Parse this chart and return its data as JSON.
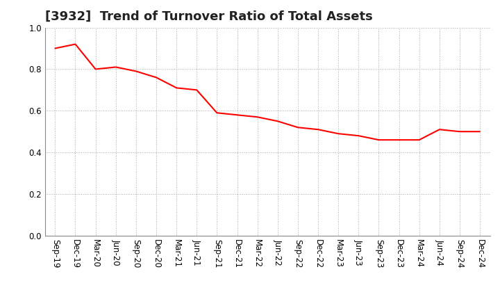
{
  "title": "[3932]  Trend of Turnover Ratio of Total Assets",
  "x_labels": [
    "Sep-19",
    "Dec-19",
    "Mar-20",
    "Jun-20",
    "Sep-20",
    "Dec-20",
    "Mar-21",
    "Jun-21",
    "Sep-21",
    "Dec-21",
    "Mar-22",
    "Jun-22",
    "Sep-22",
    "Dec-22",
    "Mar-23",
    "Jun-23",
    "Sep-23",
    "Dec-23",
    "Mar-24",
    "Jun-24",
    "Sep-24",
    "Dec-24"
  ],
  "values": [
    0.9,
    0.92,
    0.8,
    0.81,
    0.79,
    0.76,
    0.71,
    0.7,
    0.59,
    0.58,
    0.57,
    0.55,
    0.52,
    0.51,
    0.49,
    0.48,
    0.46,
    0.46,
    0.46,
    0.51,
    0.5,
    0.5
  ],
  "line_color": "#FF0000",
  "background_color": "#FFFFFF",
  "grid_color": "#AAAAAA",
  "ylim": [
    0.0,
    1.0
  ],
  "yticks": [
    0.0,
    0.2,
    0.4,
    0.6,
    0.8,
    1.0
  ],
  "title_fontsize": 13,
  "tick_fontsize": 8.5
}
